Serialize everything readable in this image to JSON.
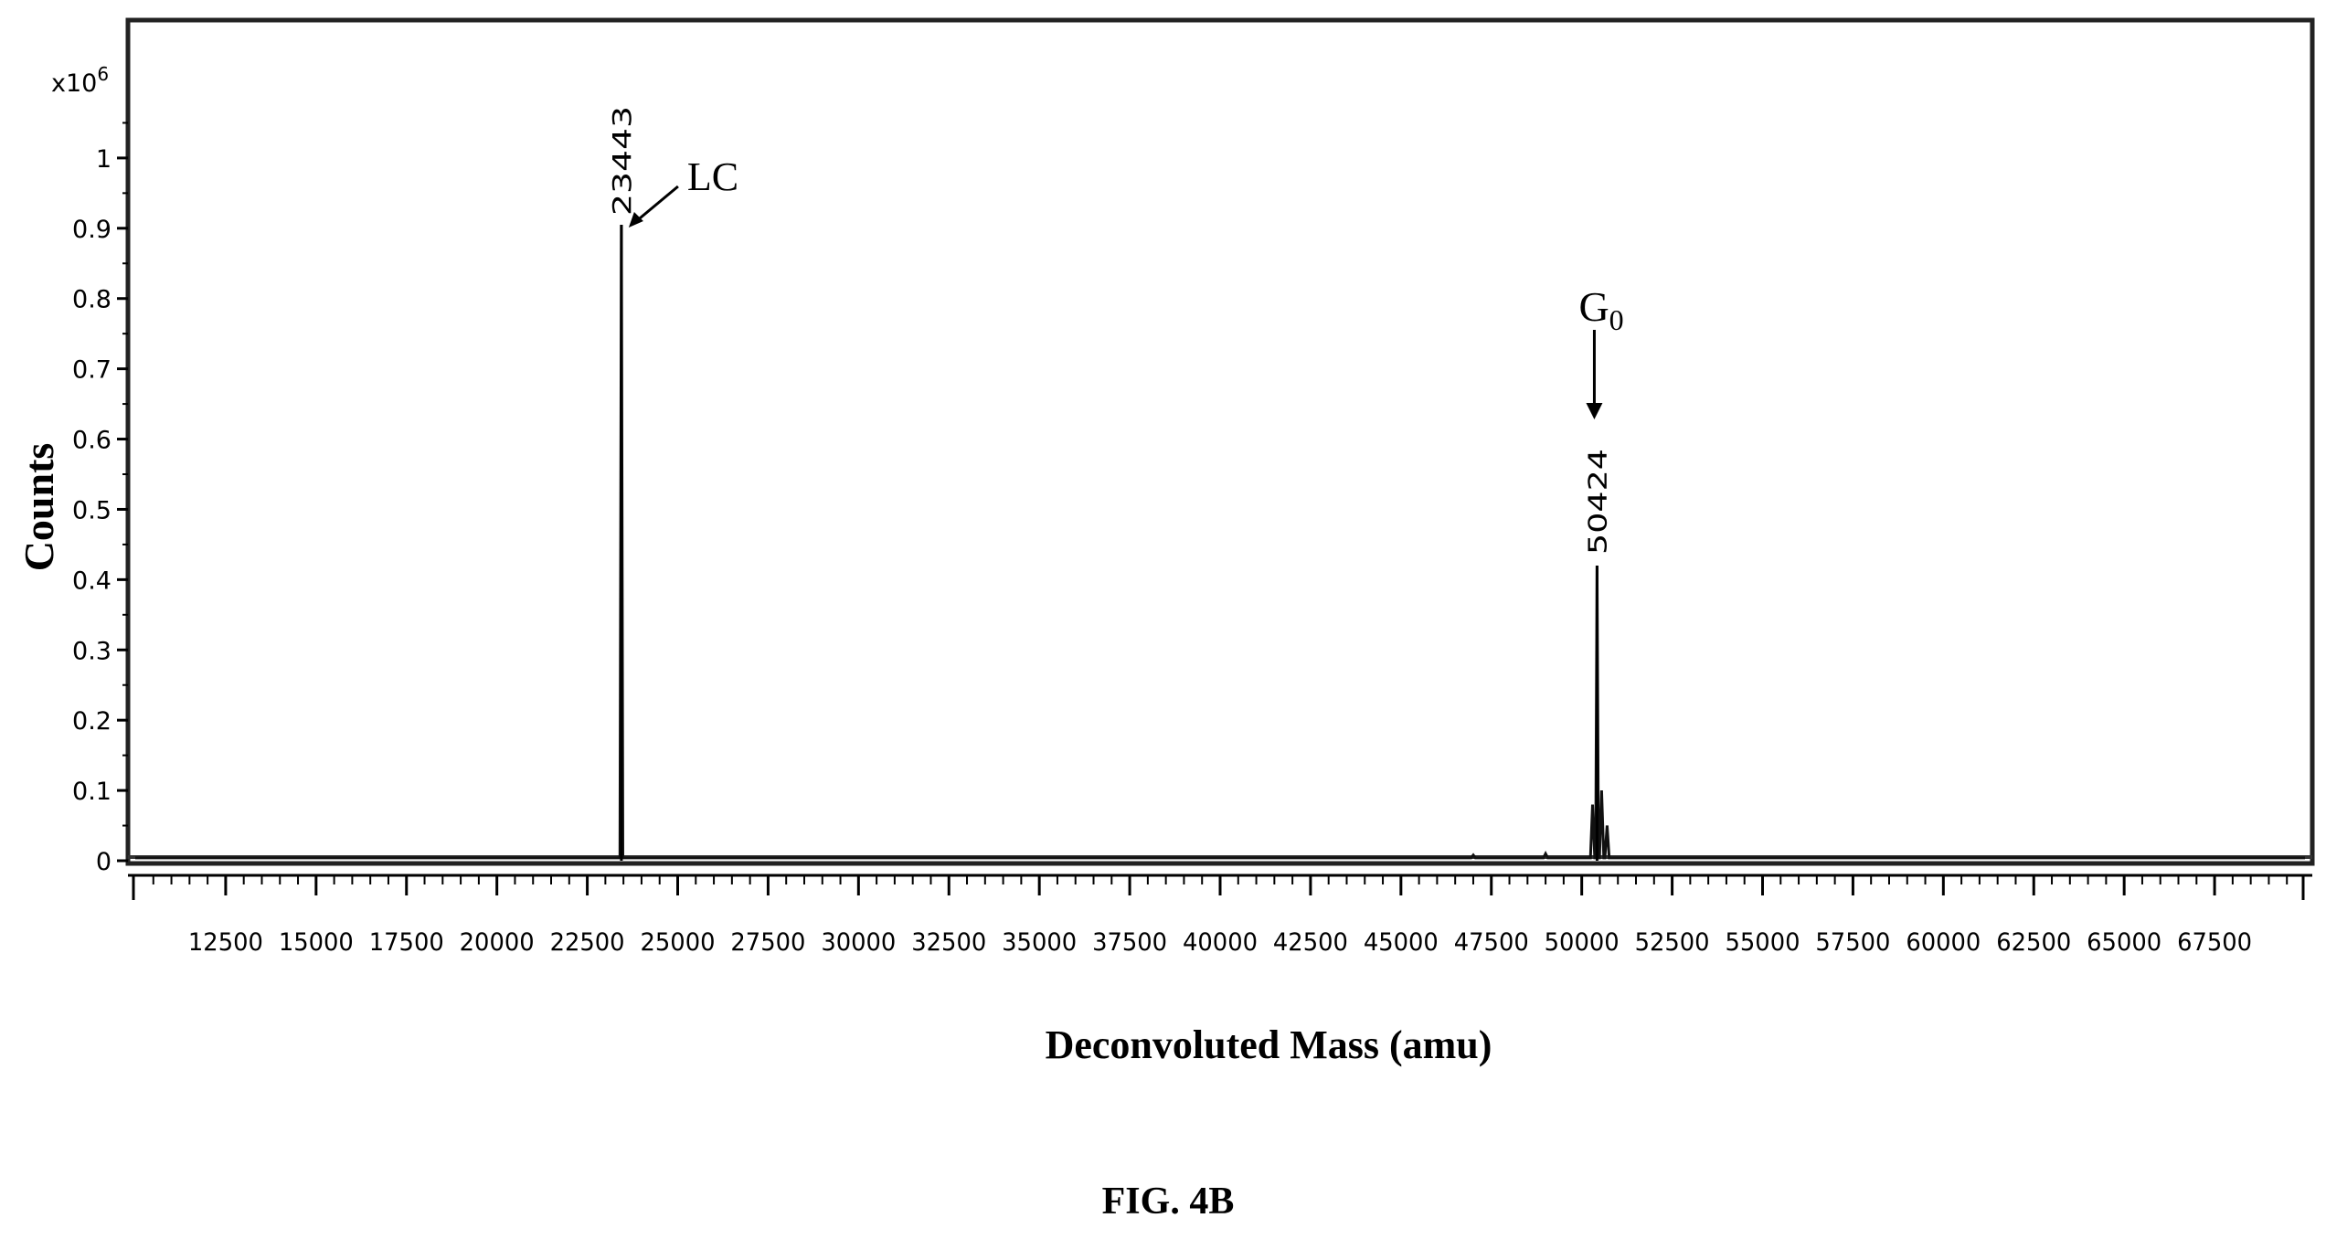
{
  "chart_data": {
    "type": "line",
    "xlabel": "Deconvoluted Mass (amu)",
    "ylabel": "Counts",
    "y_multiplier": "x10",
    "y_multiplier_exp": "6",
    "xlim": [
      10000,
      70000
    ],
    "ylim": [
      0,
      1.1
    ],
    "x_ticks": [
      12500,
      15000,
      17500,
      20000,
      22500,
      25000,
      27500,
      30000,
      32500,
      35000,
      37500,
      40000,
      42500,
      45000,
      47500,
      50000,
      52500,
      55000,
      57500,
      60000,
      62500,
      65000,
      67500
    ],
    "x_tick_labels": [
      "12500",
      "15000",
      "17500",
      "20000",
      "22500",
      "25000",
      "27500",
      "30000",
      "32500",
      "35000",
      "37500",
      "40000",
      "42500",
      "45000",
      "47500",
      "50000",
      "52500",
      "55000",
      "57500",
      "60000",
      "62500",
      "65000",
      "67500"
    ],
    "y_ticks": [
      0,
      0.1,
      0.2,
      0.3,
      0.4,
      0.5,
      0.6,
      0.7,
      0.8,
      0.9,
      1
    ],
    "y_tick_labels": [
      "0",
      "0.1",
      "0.2",
      "0.3",
      "0.4",
      "0.5",
      "0.6",
      "0.7",
      "0.8",
      "0.9",
      "1"
    ],
    "grid": false,
    "peaks": [
      {
        "x": 23443,
        "y": 0.905,
        "label": "23443",
        "annotation": "LC"
      },
      {
        "x": 50424,
        "y": 0.42,
        "label": "50424",
        "annotation": "G",
        "annotation_sub": "0"
      }
    ],
    "minor_peaks": [
      {
        "x": 50300,
        "y": 0.08
      },
      {
        "x": 50550,
        "y": 0.1
      },
      {
        "x": 50700,
        "y": 0.05
      },
      {
        "x": 49000,
        "y": 0.01
      },
      {
        "x": 47000,
        "y": 0.008
      }
    ]
  },
  "figure_caption": "FIG. 4B"
}
